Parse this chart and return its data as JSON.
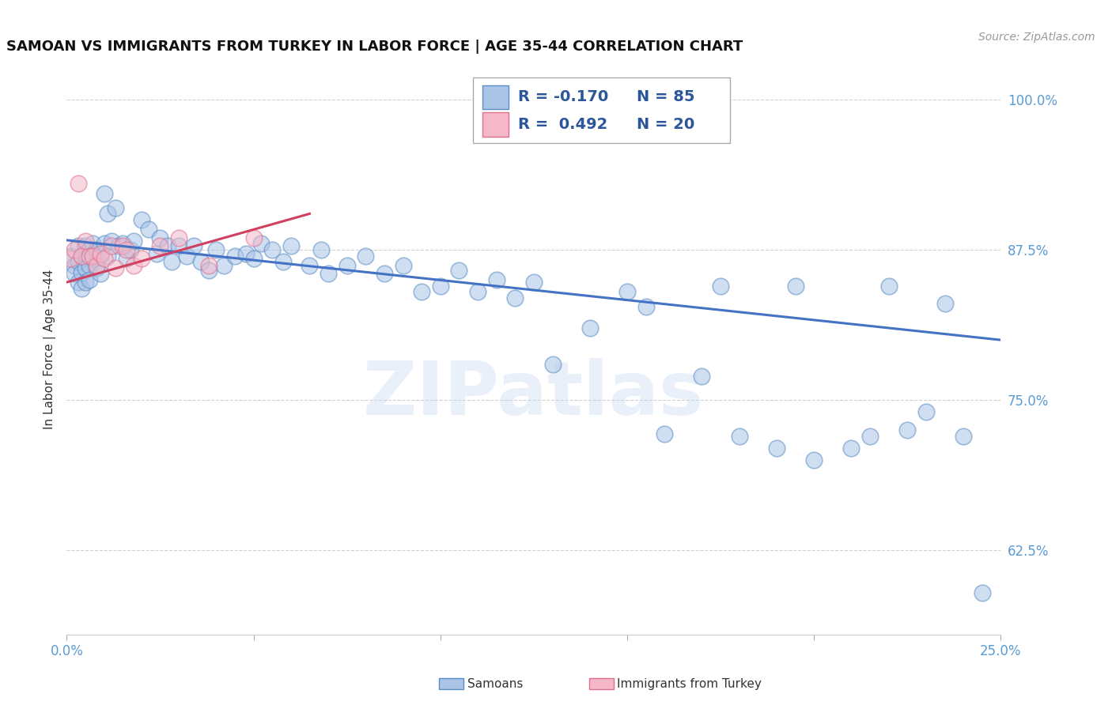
{
  "title": "SAMOAN VS IMMIGRANTS FROM TURKEY IN LABOR FORCE | AGE 35-44 CORRELATION CHART",
  "source": "Source: ZipAtlas.com",
  "ylabel": "In Labor Force | Age 35-44",
  "xlim": [
    0.0,
    0.25
  ],
  "ylim": [
    0.555,
    1.03
  ],
  "yticks": [
    0.625,
    0.75,
    0.875,
    1.0
  ],
  "ytick_labels": [
    "62.5%",
    "75.0%",
    "87.5%",
    "100.0%"
  ],
  "xtick_vals": [
    0.0,
    0.05,
    0.1,
    0.15,
    0.2,
    0.25
  ],
  "xtick_labels": [
    "0.0%",
    "",
    "",
    "",
    "",
    "25.0%"
  ],
  "dot_color_samoans": "#aac4e8",
  "edge_color_samoans": "#5b8ec4",
  "dot_color_turkey": "#f4b8c8",
  "edge_color_turkey": "#e07090",
  "line_color_samoans": "#4472c4",
  "line_color_turkey": "#d04060",
  "blue_line": {
    "x0": 0.0,
    "x1": 0.25,
    "y0": 0.883,
    "y1": 0.8
  },
  "pink_line": {
    "x0": 0.0,
    "x1": 0.065,
    "y0": 0.848,
    "y1": 0.905
  },
  "watermark_text": "ZIPatlas",
  "background_color": "#ffffff",
  "grid_color": "#cccccc",
  "legend_R_sam": "R = -0.170",
  "legend_N_sam": "N = 85",
  "legend_R_tur": "R =  0.492",
  "legend_N_tur": "N = 20",
  "samoans_x": [
    0.001,
    0.002,
    0.002,
    0.003,
    0.003,
    0.003,
    0.004,
    0.004,
    0.004,
    0.005,
    0.005,
    0.005,
    0.006,
    0.006,
    0.006,
    0.007,
    0.007,
    0.008,
    0.008,
    0.009,
    0.009,
    0.01,
    0.01,
    0.011,
    0.011,
    0.012,
    0.013,
    0.014,
    0.015,
    0.016,
    0.017,
    0.018,
    0.02,
    0.022,
    0.024,
    0.025,
    0.027,
    0.028,
    0.03,
    0.032,
    0.034,
    0.036,
    0.038,
    0.04,
    0.042,
    0.045,
    0.048,
    0.05,
    0.052,
    0.055,
    0.058,
    0.06,
    0.065,
    0.068,
    0.07,
    0.075,
    0.08,
    0.085,
    0.09,
    0.095,
    0.1,
    0.105,
    0.11,
    0.115,
    0.12,
    0.125,
    0.13,
    0.14,
    0.15,
    0.155,
    0.16,
    0.17,
    0.175,
    0.18,
    0.19,
    0.195,
    0.2,
    0.21,
    0.215,
    0.22,
    0.225,
    0.23,
    0.235,
    0.24,
    0.245
  ],
  "samoans_y": [
    0.87,
    0.862,
    0.855,
    0.878,
    0.865,
    0.848,
    0.87,
    0.856,
    0.843,
    0.878,
    0.86,
    0.848,
    0.875,
    0.862,
    0.85,
    0.88,
    0.868,
    0.875,
    0.86,
    0.87,
    0.855,
    0.88,
    0.922,
    0.905,
    0.87,
    0.882,
    0.91,
    0.878,
    0.88,
    0.868,
    0.875,
    0.882,
    0.9,
    0.892,
    0.872,
    0.885,
    0.878,
    0.865,
    0.878,
    0.87,
    0.878,
    0.865,
    0.858,
    0.875,
    0.862,
    0.87,
    0.872,
    0.868,
    0.88,
    0.875,
    0.865,
    0.878,
    0.862,
    0.875,
    0.855,
    0.862,
    0.87,
    0.855,
    0.862,
    0.84,
    0.845,
    0.858,
    0.84,
    0.85,
    0.835,
    0.848,
    0.78,
    0.81,
    0.84,
    0.828,
    0.722,
    0.77,
    0.845,
    0.72,
    0.71,
    0.845,
    0.7,
    0.71,
    0.72,
    0.845,
    0.725,
    0.74,
    0.83,
    0.72,
    0.59
  ],
  "turkey_x": [
    0.001,
    0.002,
    0.003,
    0.004,
    0.005,
    0.006,
    0.007,
    0.008,
    0.009,
    0.01,
    0.012,
    0.013,
    0.015,
    0.016,
    0.018,
    0.02,
    0.025,
    0.03,
    0.038,
    0.05
  ],
  "turkey_y": [
    0.868,
    0.875,
    0.93,
    0.87,
    0.882,
    0.87,
    0.87,
    0.862,
    0.872,
    0.868,
    0.878,
    0.86,
    0.878,
    0.875,
    0.862,
    0.868,
    0.878,
    0.885,
    0.862,
    0.885
  ]
}
